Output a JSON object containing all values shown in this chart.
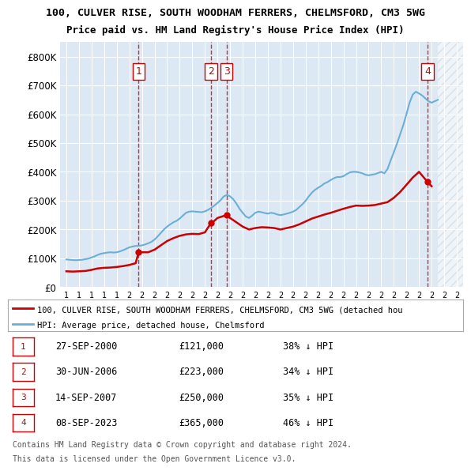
{
  "title1": "100, CULVER RISE, SOUTH WOODHAM FERRERS, CHELMSFORD, CM3 5WG",
  "title2": "Price paid vs. HM Land Registry's House Price Index (HPI)",
  "xlabel": "",
  "ylabel": "",
  "background_color": "#ffffff",
  "plot_bg_color": "#dce9f5",
  "grid_color": "#ffffff",
  "hpi_color": "#6baed6",
  "price_color": "#cc0000",
  "annotations": [
    {
      "num": 1,
      "date_x": 2000.74,
      "price": 121000
    },
    {
      "num": 2,
      "date_x": 2006.49,
      "price": 223000
    },
    {
      "num": 3,
      "date_x": 2007.71,
      "price": 250000
    },
    {
      "num": 4,
      "date_x": 2023.68,
      "price": 365000
    }
  ],
  "legend_label_price": "100, CULVER RISE, SOUTH WOODHAM FERRERS, CHELMSFORD, CM3 5WG (detached hou",
  "legend_label_hpi": "HPI: Average price, detached house, Chelmsford",
  "table": [
    {
      "num": 1,
      "date": "27-SEP-2000",
      "price": "£121,000",
      "pct": "38% ↓ HPI"
    },
    {
      "num": 2,
      "date": "30-JUN-2006",
      "price": "£223,000",
      "pct": "34% ↓ HPI"
    },
    {
      "num": 3,
      "date": "14-SEP-2007",
      "price": "£250,000",
      "pct": "35% ↓ HPI"
    },
    {
      "num": 4,
      "date": "08-SEP-2023",
      "price": "£365,000",
      "pct": "46% ↓ HPI"
    }
  ],
  "footnote1": "Contains HM Land Registry data © Crown copyright and database right 2024.",
  "footnote2": "This data is licensed under the Open Government Licence v3.0.",
  "hpi_data": {
    "years": [
      1995.0,
      1995.25,
      1995.5,
      1995.75,
      1996.0,
      1996.25,
      1996.5,
      1996.75,
      1997.0,
      1997.25,
      1997.5,
      1997.75,
      1998.0,
      1998.25,
      1998.5,
      1998.75,
      1999.0,
      1999.25,
      1999.5,
      1999.75,
      2000.0,
      2000.25,
      2000.5,
      2000.75,
      2001.0,
      2001.25,
      2001.5,
      2001.75,
      2002.0,
      2002.25,
      2002.5,
      2002.75,
      2003.0,
      2003.25,
      2003.5,
      2003.75,
      2004.0,
      2004.25,
      2004.5,
      2004.75,
      2005.0,
      2005.25,
      2005.5,
      2005.75,
      2006.0,
      2006.25,
      2006.5,
      2006.75,
      2007.0,
      2007.25,
      2007.5,
      2007.75,
      2008.0,
      2008.25,
      2008.5,
      2008.75,
      2009.0,
      2009.25,
      2009.5,
      2009.75,
      2010.0,
      2010.25,
      2010.5,
      2010.75,
      2011.0,
      2011.25,
      2011.5,
      2011.75,
      2012.0,
      2012.25,
      2012.5,
      2012.75,
      2013.0,
      2013.25,
      2013.5,
      2013.75,
      2014.0,
      2014.25,
      2014.5,
      2014.75,
      2015.0,
      2015.25,
      2015.5,
      2015.75,
      2016.0,
      2016.25,
      2016.5,
      2016.75,
      2017.0,
      2017.25,
      2017.5,
      2017.75,
      2018.0,
      2018.25,
      2018.5,
      2018.75,
      2019.0,
      2019.25,
      2019.5,
      2019.75,
      2020.0,
      2020.25,
      2020.5,
      2020.75,
      2021.0,
      2021.25,
      2021.5,
      2021.75,
      2022.0,
      2022.25,
      2022.5,
      2022.75,
      2023.0,
      2023.25,
      2023.5,
      2023.75,
      2024.0,
      2024.25,
      2024.5
    ],
    "values": [
      96000,
      95000,
      94000,
      93500,
      94000,
      95000,
      97000,
      99000,
      103000,
      107000,
      112000,
      116000,
      118000,
      120000,
      121000,
      120000,
      121000,
      124000,
      128000,
      133000,
      138000,
      141000,
      143000,
      143000,
      145000,
      148000,
      152000,
      157000,
      165000,
      176000,
      188000,
      200000,
      210000,
      218000,
      225000,
      230000,
      238000,
      248000,
      258000,
      262000,
      263000,
      262000,
      261000,
      260000,
      263000,
      268000,
      275000,
      283000,
      292000,
      302000,
      315000,
      320000,
      315000,
      305000,
      290000,
      272000,
      258000,
      245000,
      240000,
      248000,
      258000,
      262000,
      260000,
      257000,
      255000,
      258000,
      256000,
      252000,
      250000,
      252000,
      255000,
      258000,
      262000,
      268000,
      278000,
      288000,
      300000,
      315000,
      328000,
      338000,
      345000,
      352000,
      360000,
      365000,
      372000,
      378000,
      382000,
      382000,
      385000,
      392000,
      398000,
      400000,
      400000,
      398000,
      395000,
      390000,
      388000,
      390000,
      392000,
      396000,
      400000,
      395000,
      410000,
      440000,
      468000,
      498000,
      530000,
      562000,
      600000,
      640000,
      668000,
      678000,
      672000,
      665000,
      655000,
      645000,
      640000,
      645000,
      650000
    ]
  },
  "price_data": {
    "years": [
      1995.0,
      1995.5,
      1996.0,
      1996.5,
      1997.0,
      1997.5,
      1998.0,
      1998.5,
      1999.0,
      1999.5,
      2000.0,
      2000.5,
      2000.74,
      2001.5,
      2002.0,
      2002.5,
      2003.0,
      2003.5,
      2004.0,
      2004.5,
      2005.0,
      2005.5,
      2006.0,
      2006.49,
      2006.75,
      2007.0,
      2007.71,
      2007.75,
      2008.0,
      2008.5,
      2009.0,
      2009.5,
      2010.0,
      2010.5,
      2011.0,
      2011.5,
      2012.0,
      2012.5,
      2013.0,
      2013.5,
      2014.0,
      2014.5,
      2015.0,
      2015.5,
      2016.0,
      2016.5,
      2017.0,
      2017.5,
      2018.0,
      2018.5,
      2019.0,
      2019.5,
      2020.0,
      2020.5,
      2021.0,
      2021.5,
      2022.0,
      2022.5,
      2023.0,
      2023.68,
      2024.0
    ],
    "values": [
      55000,
      54000,
      55000,
      56000,
      60000,
      65000,
      67000,
      68000,
      70000,
      73000,
      77000,
      83000,
      121000,
      121000,
      130000,
      145000,
      160000,
      170000,
      178000,
      183000,
      185000,
      184000,
      190000,
      223000,
      230000,
      240000,
      250000,
      248000,
      240000,
      225000,
      210000,
      200000,
      205000,
      208000,
      207000,
      205000,
      200000,
      205000,
      210000,
      218000,
      228000,
      238000,
      245000,
      252000,
      258000,
      265000,
      272000,
      278000,
      283000,
      282000,
      283000,
      285000,
      290000,
      295000,
      310000,
      330000,
      355000,
      380000,
      400000,
      365000,
      350000
    ]
  },
  "xlim": [
    1994.5,
    2026.5
  ],
  "ylim": [
    0,
    850000
  ],
  "yticks": [
    0,
    100000,
    200000,
    300000,
    400000,
    500000,
    600000,
    700000,
    800000
  ],
  "ytick_labels": [
    "£0",
    "£100K",
    "£200K",
    "£300K",
    "£400K",
    "£500K",
    "£600K",
    "£700K",
    "£800K"
  ],
  "xticks": [
    1995,
    1996,
    1997,
    1998,
    1999,
    2000,
    2001,
    2002,
    2003,
    2004,
    2005,
    2006,
    2007,
    2008,
    2009,
    2010,
    2011,
    2012,
    2013,
    2014,
    2015,
    2016,
    2017,
    2018,
    2019,
    2020,
    2021,
    2022,
    2023,
    2024,
    2025,
    2026
  ]
}
